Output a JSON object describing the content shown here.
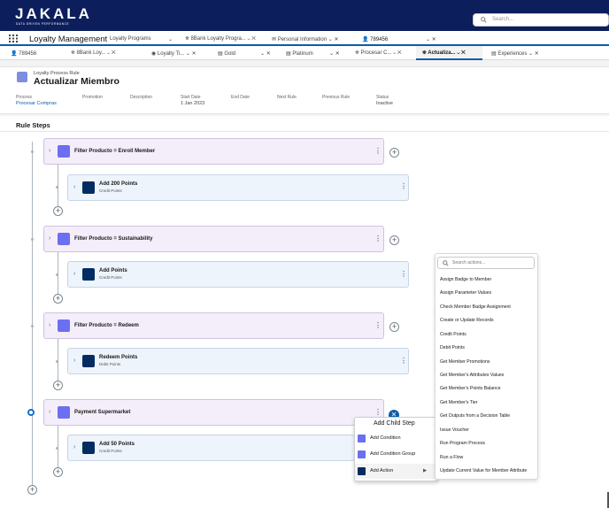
{
  "brand": {
    "logo": "JAKALA",
    "tagline": "DATA DRIVEN PERFORMANCE"
  },
  "search": {
    "placeholder": "Search..."
  },
  "app_name": "Loyalty Management",
  "nav_tabs": [
    {
      "label": "Loyalty Programs"
    },
    {
      "label": "8Bank Loyalty Progra..."
    },
    {
      "label": "Personal Information"
    },
    {
      "label": "789456"
    }
  ],
  "sub_tabs": [
    {
      "label": "789456"
    },
    {
      "label": "8Bank Loy..."
    },
    {
      "label": "Loyalty Ti..."
    },
    {
      "label": "Gold"
    },
    {
      "label": "Platinum"
    },
    {
      "label": "Procesar C..."
    },
    {
      "label": "Actualiza..."
    },
    {
      "label": "Experiences"
    }
  ],
  "record": {
    "object_label": "Loyalty Process Rule",
    "title": "Actualizar Miembro",
    "fields": [
      {
        "label": "Process",
        "value": "Procesar Compras"
      },
      {
        "label": "Promotion",
        "value": ""
      },
      {
        "label": "Description",
        "value": ""
      },
      {
        "label": "Start Date",
        "value": "1 Jan 2023"
      },
      {
        "label": "End Date",
        "value": ""
      },
      {
        "label": "Next Rule",
        "value": ""
      },
      {
        "label": "Previous Rule",
        "value": ""
      },
      {
        "label": "Status",
        "value": "Inactive"
      }
    ]
  },
  "rule_steps": {
    "title": "Rule Steps",
    "steps": [
      {
        "title": "Filter Producto = Enroll Member",
        "child": {
          "title": "Add 200 Points",
          "subtitle": "Credit Points"
        }
      },
      {
        "title": "Filter Producto = Sustainability",
        "child": {
          "title": "Add Points",
          "subtitle": "Credit Points"
        }
      },
      {
        "title": "Filter Producto = Redeem",
        "child": {
          "title": "Redeem Points",
          "subtitle": "Debit Points"
        }
      },
      {
        "title": "Payment Supermarket",
        "child": {
          "title": "Add 50 Points",
          "subtitle": "Credit Points"
        }
      }
    ]
  },
  "actions_dropdown": {
    "search_placeholder": "Search actions...",
    "items": [
      "Assign Badge to Member",
      "Assign Parameter Values",
      "Check Member Badge Assignment",
      "Create or Update Records",
      "Credit Points",
      "Debit Points",
      "Get Member Promotions",
      "Get Member's Attributes Values",
      "Get Member's Points Balance",
      "Get Member's Tier",
      "Get Outputs from a Decision Table",
      "Issue Voucher",
      "Run Program Process",
      "Run a Flow",
      "Update Current Value for Member Attribute"
    ]
  },
  "context_menu": {
    "title": "Add Child Step",
    "items": [
      "Add Condition",
      "Add Condition Group",
      "Add Action"
    ]
  },
  "colors": {
    "nav": "#0c1f5c",
    "accent": "#0b5cab",
    "condition": "#6b6ff0",
    "action": "#032d60"
  }
}
